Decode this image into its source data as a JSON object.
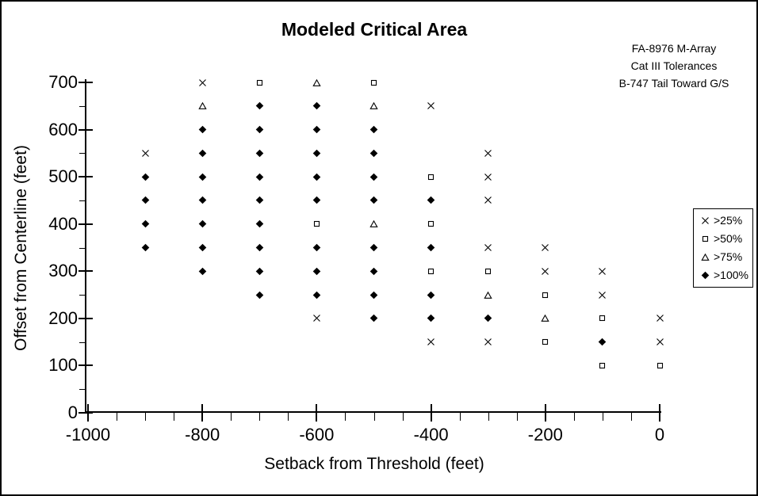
{
  "title": "Modeled Critical Area",
  "annotation": {
    "lines": [
      "FA-8976 M-Array",
      "Cat III Tolerances",
      "B-747 Tail Toward G/S"
    ]
  },
  "colors": {
    "foreground": "#000000",
    "background": "#ffffff"
  },
  "chart_data": {
    "type": "scatter",
    "title": "Modeled Critical Area",
    "xlabel": "Setback from Threshold (feet)",
    "ylabel": "Offset from Centerline (feet)",
    "xlim": [
      -1000,
      0
    ],
    "ylim": [
      0,
      700
    ],
    "x_major_ticks": [
      -1000,
      -800,
      -600,
      -400,
      -200,
      0
    ],
    "x_minor_tick_step": 50,
    "y_major_ticks": [
      0,
      100,
      200,
      300,
      400,
      500,
      600,
      700
    ],
    "y_minor_tick_step": 50,
    "grid": false,
    "legend_position": "right",
    "legend": [
      {
        "marker": "x",
        "label": ">25%"
      },
      {
        "marker": "square",
        "label": ">50%"
      },
      {
        "marker": "triangle",
        "label": ">75%"
      },
      {
        "marker": "diamond",
        "label": ">100%"
      }
    ],
    "series": [
      {
        "name": ">25%",
        "marker": "x",
        "points": [
          [
            -900,
            550
          ],
          [
            -800,
            700
          ],
          [
            -600,
            200
          ],
          [
            -400,
            650
          ],
          [
            -400,
            150
          ],
          [
            -300,
            550
          ],
          [
            -300,
            500
          ],
          [
            -300,
            450
          ],
          [
            -300,
            350
          ],
          [
            -300,
            150
          ],
          [
            -200,
            350
          ],
          [
            -200,
            300
          ],
          [
            -100,
            300
          ],
          [
            -100,
            250
          ],
          [
            0,
            200
          ],
          [
            0,
            150
          ]
        ]
      },
      {
        "name": ">50%",
        "marker": "square",
        "points": [
          [
            -700,
            700
          ],
          [
            -600,
            400
          ],
          [
            -500,
            700
          ],
          [
            -400,
            500
          ],
          [
            -400,
            400
          ],
          [
            -400,
            300
          ],
          [
            -300,
            300
          ],
          [
            -200,
            250
          ],
          [
            -200,
            150
          ],
          [
            -100,
            200
          ],
          [
            -100,
            100
          ],
          [
            0,
            100
          ]
        ]
      },
      {
        "name": ">75%",
        "marker": "triangle",
        "points": [
          [
            -800,
            650
          ],
          [
            -600,
            700
          ],
          [
            -500,
            650
          ],
          [
            -500,
            400
          ],
          [
            -300,
            250
          ],
          [
            -200,
            200
          ]
        ]
      },
      {
        "name": ">100%",
        "marker": "diamond",
        "points": [
          [
            -900,
            500
          ],
          [
            -900,
            450
          ],
          [
            -900,
            400
          ],
          [
            -900,
            350
          ],
          [
            -800,
            600
          ],
          [
            -800,
            550
          ],
          [
            -800,
            500
          ],
          [
            -800,
            450
          ],
          [
            -800,
            400
          ],
          [
            -800,
            350
          ],
          [
            -800,
            300
          ],
          [
            -700,
            650
          ],
          [
            -700,
            600
          ],
          [
            -700,
            550
          ],
          [
            -700,
            500
          ],
          [
            -700,
            450
          ],
          [
            -700,
            400
          ],
          [
            -700,
            350
          ],
          [
            -700,
            300
          ],
          [
            -700,
            250
          ],
          [
            -600,
            650
          ],
          [
            -600,
            600
          ],
          [
            -600,
            550
          ],
          [
            -600,
            500
          ],
          [
            -600,
            450
          ],
          [
            -600,
            350
          ],
          [
            -600,
            300
          ],
          [
            -600,
            250
          ],
          [
            -500,
            600
          ],
          [
            -500,
            550
          ],
          [
            -500,
            500
          ],
          [
            -500,
            450
          ],
          [
            -500,
            350
          ],
          [
            -500,
            300
          ],
          [
            -500,
            250
          ],
          [
            -500,
            200
          ],
          [
            -400,
            450
          ],
          [
            -400,
            350
          ],
          [
            -400,
            250
          ],
          [
            -400,
            200
          ],
          [
            -300,
            200
          ],
          [
            -100,
            150
          ]
        ]
      }
    ]
  }
}
